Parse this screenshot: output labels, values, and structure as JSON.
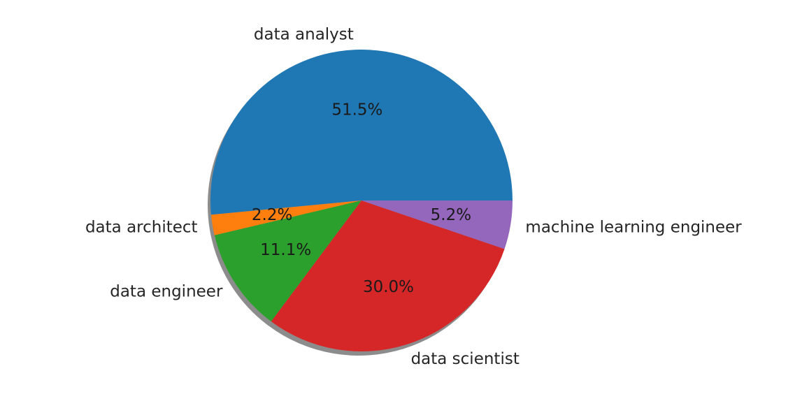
{
  "chart_data": {
    "type": "pie",
    "title": "",
    "start_angle_deg": 0,
    "direction": "counterclockwise",
    "shadow": true,
    "slices": [
      {
        "label": "data analyst",
        "value": 51.5,
        "pct_label": "51.5%",
        "color": "#1f77b4"
      },
      {
        "label": "data architect",
        "value": 2.2,
        "pct_label": "2.2%",
        "color": "#ff7f0e"
      },
      {
        "label": "data engineer",
        "value": 11.1,
        "pct_label": "11.1%",
        "color": "#2ca02c"
      },
      {
        "label": "data scientist",
        "value": 30.0,
        "pct_label": "30.0%",
        "color": "#d62728"
      },
      {
        "label": "machine learning engineer",
        "value": 5.2,
        "pct_label": "5.2%",
        "color": "#9467bd"
      }
    ]
  }
}
